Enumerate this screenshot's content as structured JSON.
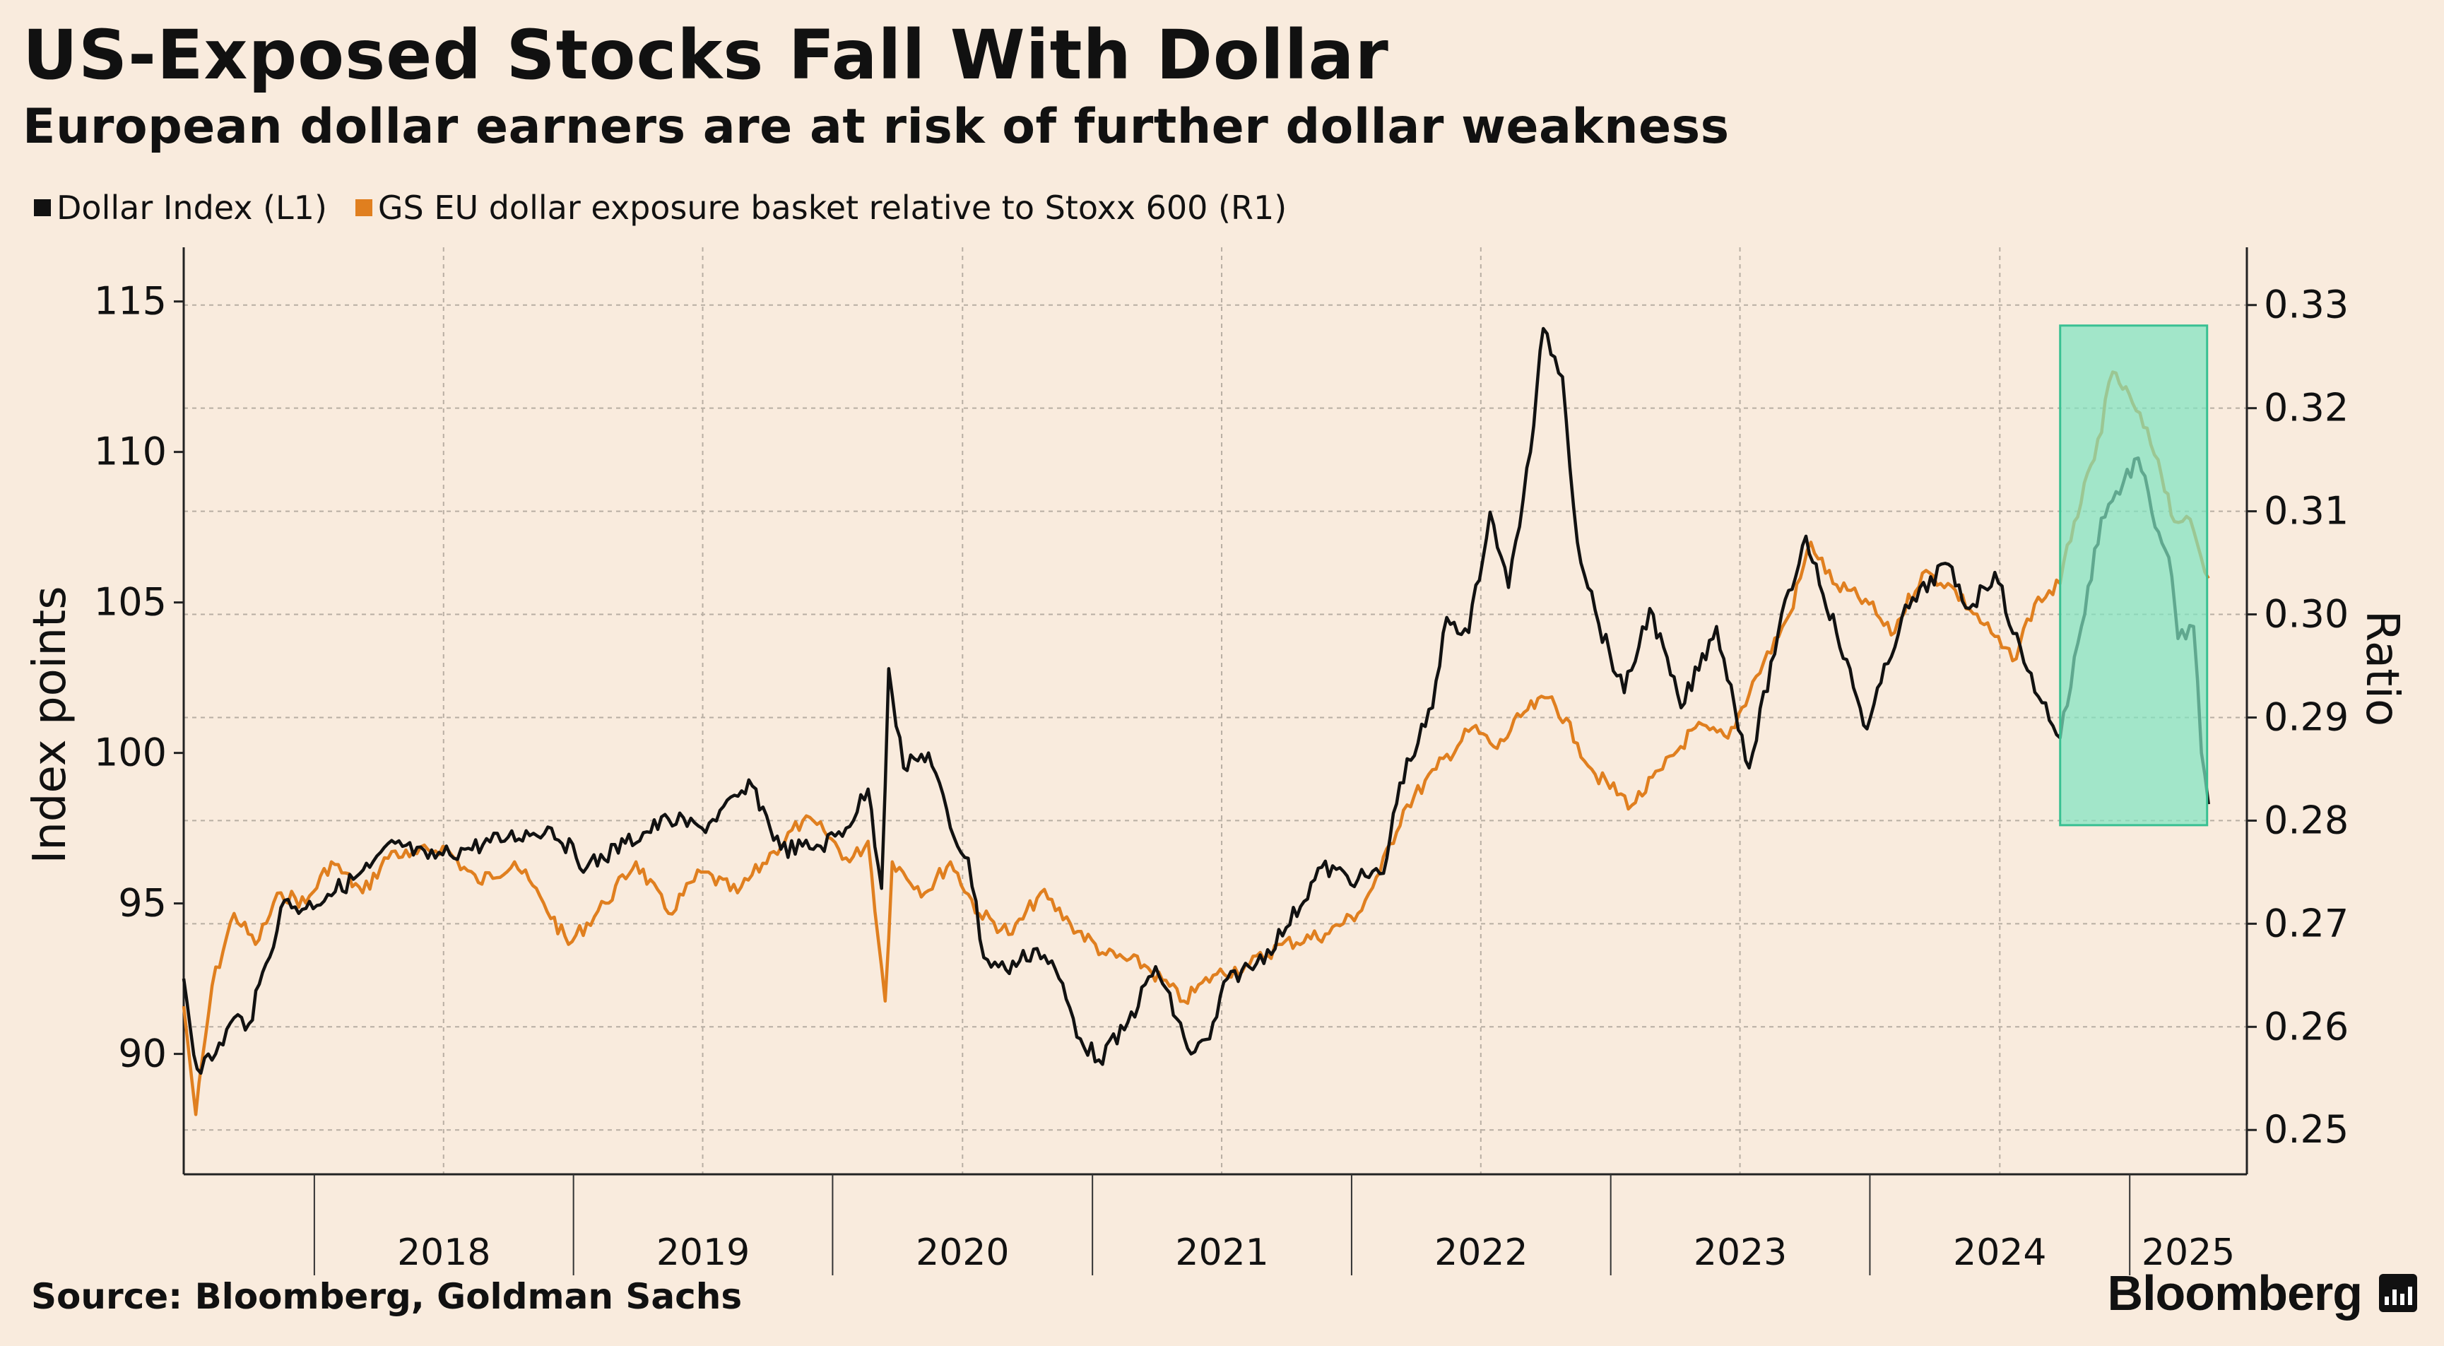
{
  "title": "US-Exposed Stocks Fall With Dollar",
  "subtitle": "European dollar earners are at risk of further dollar weakness",
  "source": "Source: Bloomberg, Goldman Sachs",
  "brand": "Bloomberg",
  "colors": {
    "background": "#f9ebdd",
    "dollar": "#111111",
    "basket": "#e07f1f",
    "highlight": "#7fe3c0",
    "highlight_border": "#39c092",
    "grid": "#b8aea3"
  },
  "chart_data": {
    "type": "line",
    "grid": true,
    "legend_position": "top-left",
    "x_tick_labels": [
      "2018",
      "2019",
      "2020",
      "2021",
      "2022",
      "2023",
      "2024",
      "2025"
    ],
    "x_year_boundaries": [
      "2018-01-01",
      "2019-01-01",
      "2020-01-01",
      "2021-01-01",
      "2022-01-01",
      "2023-01-01",
      "2024-01-01",
      "2025-01-01"
    ],
    "xlim": [
      "2017-07-01",
      "2025-06-15"
    ],
    "left_axis": {
      "label": "Index points",
      "ylim": [
        86,
        116.8
      ],
      "ticks": [
        90,
        95,
        100,
        105,
        110,
        115
      ]
    },
    "right_axis": {
      "label": "Ratio",
      "ylim": [
        0.2457,
        0.3356
      ],
      "ticks": [
        "0.25",
        "0.26",
        "0.27",
        "0.28",
        "0.29",
        "0.30",
        "0.31",
        "0.32",
        "0.33"
      ]
    },
    "highlight": {
      "x_start": "2024-09-25",
      "x_end": "2025-04-20",
      "left_y_low": 97.6,
      "left_y_high": 114.2
    },
    "series": [
      {
        "name": "Dollar Index (L1)",
        "axis": "left",
        "color": "#111111",
        "points": [
          [
            "2017-07-01",
            92.5
          ],
          [
            "2017-07-20",
            89.5
          ],
          [
            "2017-08-15",
            90.0
          ],
          [
            "2017-09-10",
            91.2
          ],
          [
            "2017-10-01",
            91.0
          ],
          [
            "2017-10-25",
            93.0
          ],
          [
            "2017-11-20",
            95.1
          ],
          [
            "2017-12-15",
            94.8
          ],
          [
            "2018-01-20",
            95.3
          ],
          [
            "2018-02-25",
            95.8
          ],
          [
            "2018-03-20",
            96.2
          ],
          [
            "2018-04-25",
            97.0
          ],
          [
            "2018-06-10",
            96.5
          ],
          [
            "2018-08-01",
            96.8
          ],
          [
            "2018-10-01",
            97.2
          ],
          [
            "2018-12-01",
            97.5
          ],
          [
            "2019-01-20",
            96.2
          ],
          [
            "2019-03-15",
            97.0
          ],
          [
            "2019-05-15",
            97.8
          ],
          [
            "2019-07-01",
            97.5
          ],
          [
            "2019-09-10",
            98.9
          ],
          [
            "2019-10-20",
            96.8
          ],
          [
            "2019-12-15",
            96.9
          ],
          [
            "2020-01-20",
            97.5
          ],
          [
            "2020-02-20",
            98.8
          ],
          [
            "2020-03-10",
            95.5
          ],
          [
            "2020-03-20",
            102.8
          ],
          [
            "2020-04-10",
            99.5
          ],
          [
            "2020-05-15",
            100.0
          ],
          [
            "2020-06-20",
            97.2
          ],
          [
            "2020-07-10",
            96.5
          ],
          [
            "2020-08-01",
            93.2
          ],
          [
            "2020-09-01",
            92.8
          ],
          [
            "2020-10-15",
            93.5
          ],
          [
            "2020-11-10",
            92.8
          ],
          [
            "2020-12-15",
            90.5
          ],
          [
            "2021-01-10",
            89.8
          ],
          [
            "2021-02-15",
            90.8
          ],
          [
            "2021-03-31",
            92.9
          ],
          [
            "2021-05-20",
            90.0
          ],
          [
            "2021-06-15",
            90.5
          ],
          [
            "2021-07-10",
            92.5
          ],
          [
            "2021-08-20",
            93.0
          ],
          [
            "2021-10-01",
            94.2
          ],
          [
            "2021-11-20",
            96.2
          ],
          [
            "2022-01-10",
            95.8
          ],
          [
            "2022-02-15",
            96.0
          ],
          [
            "2022-03-10",
            99.0
          ],
          [
            "2022-04-25",
            101.5
          ],
          [
            "2022-05-15",
            104.5
          ],
          [
            "2022-06-15",
            104.0
          ],
          [
            "2022-07-15",
            108.0
          ],
          [
            "2022-08-10",
            105.5
          ],
          [
            "2022-09-10",
            110.0
          ],
          [
            "2022-09-28",
            114.1
          ],
          [
            "2022-10-25",
            112.5
          ],
          [
            "2022-11-15",
            107.0
          ],
          [
            "2022-12-15",
            104.3
          ],
          [
            "2023-01-20",
            102.0
          ],
          [
            "2023-02-25",
            104.8
          ],
          [
            "2023-04-10",
            101.5
          ],
          [
            "2023-05-30",
            104.2
          ],
          [
            "2023-07-15",
            99.5
          ],
          [
            "2023-08-25",
            104.0
          ],
          [
            "2023-10-03",
            107.2
          ],
          [
            "2023-11-15",
            104.0
          ],
          [
            "2023-12-28",
            100.8
          ],
          [
            "2024-02-15",
            104.5
          ],
          [
            "2024-04-16",
            106.3
          ],
          [
            "2024-05-20",
            104.8
          ],
          [
            "2024-06-25",
            106.0
          ],
          [
            "2024-08-05",
            103.0
          ],
          [
            "2024-09-25",
            100.5
          ],
          [
            "2024-10-25",
            104.2
          ],
          [
            "2024-11-22",
            107.8
          ],
          [
            "2025-01-13",
            109.8
          ],
          [
            "2025-02-01",
            108.0
          ],
          [
            "2025-02-25",
            106.5
          ],
          [
            "2025-03-10",
            103.8
          ],
          [
            "2025-04-01",
            104.2
          ],
          [
            "2025-04-12",
            100.0
          ],
          [
            "2025-04-22",
            98.3
          ]
        ]
      },
      {
        "name": "GS EU dollar exposure basket relative to Stoxx 600 (R1)",
        "axis": "right",
        "color": "#e07f1f",
        "points": [
          [
            "2017-07-01",
            0.262
          ],
          [
            "2017-07-18",
            0.2515
          ],
          [
            "2017-08-10",
            0.264
          ],
          [
            "2017-09-10",
            0.271
          ],
          [
            "2017-10-10",
            0.268
          ],
          [
            "2017-11-15",
            0.273
          ],
          [
            "2017-12-20",
            0.272
          ],
          [
            "2018-01-25",
            0.276
          ],
          [
            "2018-03-10",
            0.273
          ],
          [
            "2018-04-20",
            0.277
          ],
          [
            "2018-05-15",
            0.2765
          ],
          [
            "2018-07-01",
            0.2775
          ],
          [
            "2018-08-20",
            0.274
          ],
          [
            "2018-10-10",
            0.276
          ],
          [
            "2018-11-20",
            0.272
          ],
          [
            "2018-12-25",
            0.268
          ],
          [
            "2019-02-15",
            0.272
          ],
          [
            "2019-03-30",
            0.276
          ],
          [
            "2019-05-15",
            0.271
          ],
          [
            "2019-06-30",
            0.275
          ],
          [
            "2019-08-20",
            0.273
          ],
          [
            "2019-10-10",
            0.277
          ],
          [
            "2019-11-20",
            0.28
          ],
          [
            "2019-12-20",
            0.279
          ],
          [
            "2020-01-25",
            0.276
          ],
          [
            "2020-02-20",
            0.278
          ],
          [
            "2020-03-15",
            0.2625
          ],
          [
            "2020-03-25",
            0.276
          ],
          [
            "2020-05-10",
            0.273
          ],
          [
            "2020-06-15",
            0.276
          ],
          [
            "2020-07-25",
            0.271
          ],
          [
            "2020-09-10",
            0.269
          ],
          [
            "2020-10-20",
            0.273
          ],
          [
            "2020-12-01",
            0.27
          ],
          [
            "2021-01-20",
            0.267
          ],
          [
            "2021-03-15",
            0.266
          ],
          [
            "2021-05-10",
            0.2625
          ],
          [
            "2021-06-20",
            0.265
          ],
          [
            "2021-08-10",
            0.266
          ],
          [
            "2021-09-25",
            0.268
          ],
          [
            "2021-11-25",
            0.269
          ],
          [
            "2022-01-10",
            0.271
          ],
          [
            "2022-02-10",
            0.275
          ],
          [
            "2022-03-15",
            0.281
          ],
          [
            "2022-04-30",
            0.285
          ],
          [
            "2022-06-20",
            0.289
          ],
          [
            "2022-07-25",
            0.287
          ],
          [
            "2022-09-01",
            0.2905
          ],
          [
            "2022-10-10",
            0.292
          ],
          [
            "2022-11-15",
            0.2875
          ],
          [
            "2022-12-10",
            0.2845
          ],
          [
            "2023-01-31",
            0.2815
          ],
          [
            "2023-03-15",
            0.285
          ],
          [
            "2023-04-30",
            0.289
          ],
          [
            "2023-06-15",
            0.288
          ],
          [
            "2023-07-25",
            0.294
          ],
          [
            "2023-09-10",
            0.3
          ],
          [
            "2023-10-10",
            0.307
          ],
          [
            "2023-11-10",
            0.303
          ],
          [
            "2023-12-31",
            0.301
          ],
          [
            "2024-01-31",
            0.298
          ],
          [
            "2024-03-15",
            0.304
          ],
          [
            "2024-04-20",
            0.303
          ],
          [
            "2024-06-10",
            0.299
          ],
          [
            "2024-07-20",
            0.2955
          ],
          [
            "2024-08-20",
            0.301
          ],
          [
            "2024-09-25",
            0.303
          ],
          [
            "2024-10-15",
            0.309
          ],
          [
            "2024-11-12",
            0.315
          ],
          [
            "2024-12-08",
            0.3235
          ],
          [
            "2025-01-05",
            0.3205
          ],
          [
            "2025-02-10",
            0.315
          ],
          [
            "2025-03-05",
            0.309
          ],
          [
            "2025-03-22",
            0.3095
          ],
          [
            "2025-04-22",
            0.3035
          ]
        ]
      }
    ]
  }
}
